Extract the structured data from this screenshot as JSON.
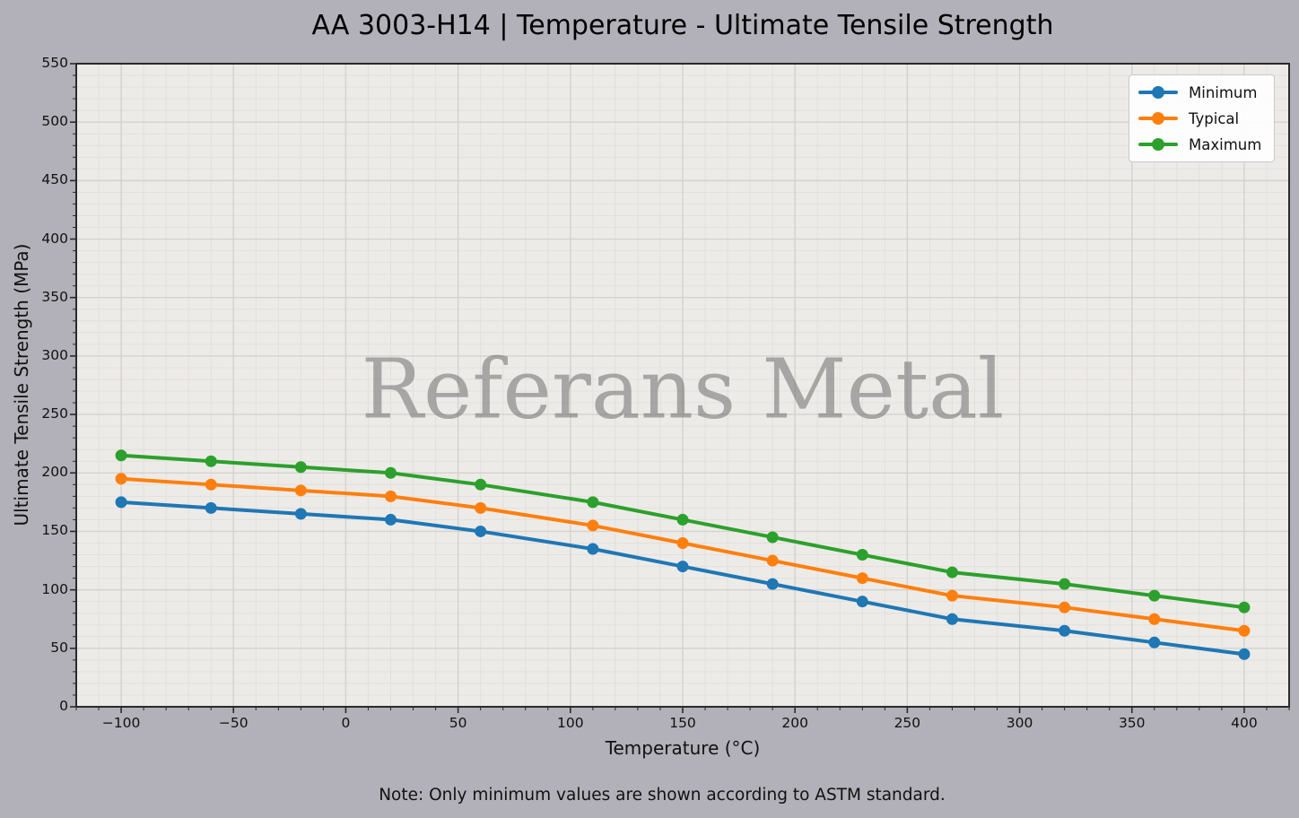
{
  "figure": {
    "watermark": "Referans Metal",
    "note": "Note: Only minimum values are shown according to ASTM standard."
  },
  "chart_data": {
    "type": "line",
    "title": "AA 3003-H14 | Temperature - Ultimate Tensile Strength",
    "xlabel": "Temperature (°C)",
    "ylabel": "Ultimate Tensile Strength (MPa)",
    "x": [
      -100,
      -60,
      -20,
      20,
      60,
      110,
      150,
      190,
      230,
      270,
      320,
      360,
      400
    ],
    "series": [
      {
        "name": "Minimum",
        "color": "#1f77b4",
        "values": [
          175,
          170,
          165,
          160,
          150,
          135,
          120,
          105,
          90,
          75,
          65,
          55,
          45
        ]
      },
      {
        "name": "Typical",
        "color": "#ff7f0e",
        "values": [
          195,
          190,
          185,
          180,
          170,
          155,
          140,
          125,
          110,
          95,
          85,
          75,
          65
        ]
      },
      {
        "name": "Maximum",
        "color": "#2ca02c",
        "values": [
          215,
          210,
          205,
          200,
          190,
          175,
          160,
          145,
          130,
          115,
          105,
          95,
          85
        ]
      }
    ],
    "xlim": [
      -120,
      420
    ],
    "ylim": [
      0,
      550
    ],
    "xticks": [
      -100,
      -50,
      0,
      50,
      100,
      150,
      200,
      250,
      300,
      350,
      400
    ],
    "yticks": [
      0,
      50,
      100,
      150,
      200,
      250,
      300,
      350,
      400,
      450,
      500,
      550
    ],
    "minor_step": 10,
    "grid": "major+minor",
    "legend_position": "top-right"
  },
  "colors": {
    "figure_bg": "#b2b1b9",
    "plot_bg": "#edebe8",
    "grid_major": "#d5d1cf",
    "grid_minor": "#e2dfdc",
    "spine": "#2a2a2a",
    "tick": "#2a2a2a",
    "watermark": "rgba(100,98,96,0.5)"
  }
}
